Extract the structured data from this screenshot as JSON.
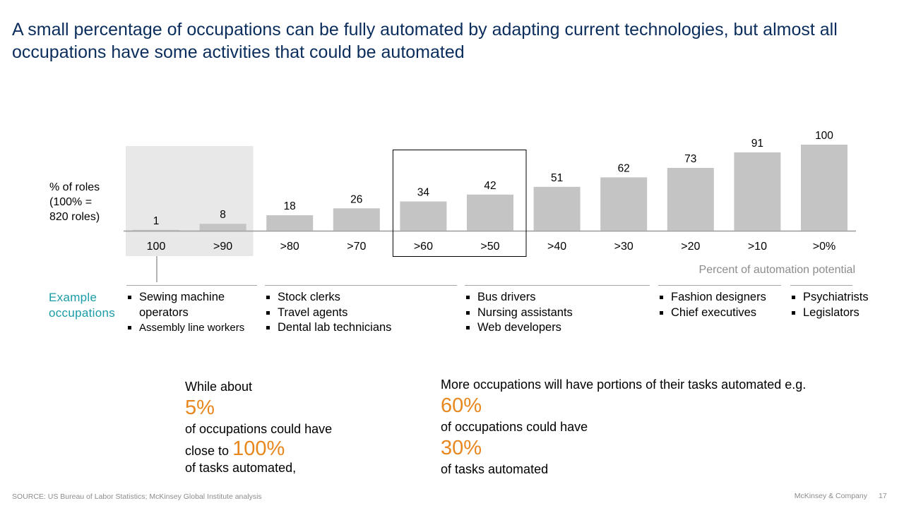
{
  "title": "A small percentage of occupations can be fully automated by adapting current technologies, but almost all occupations have some activities that could be automated",
  "roles_label": [
    "% of roles",
    "(100% =",
    "820 roles)"
  ],
  "chart_data": {
    "type": "bar",
    "categories": [
      "100",
      ">90",
      ">80",
      ">70",
      ">60",
      ">50",
      ">40",
      ">30",
      ">20",
      ">10",
      ">0%"
    ],
    "values": [
      1,
      8,
      18,
      26,
      34,
      42,
      51,
      62,
      73,
      91,
      100
    ],
    "xlabel": "Percent of automation potential",
    "ylabel": "% of roles (100% = 820 roles)",
    "ylim": [
      0,
      100
    ],
    "bar_color": "#c4c4c4",
    "highlight_shaded_categories": [
      "100",
      ">90"
    ],
    "highlight_boxed_categories": [
      ">60",
      ">50"
    ]
  },
  "examples": {
    "label": [
      "Example",
      "occupations"
    ],
    "groups": [
      {
        "items": [
          "Sewing machine",
          "operators",
          "Assembly line workers"
        ]
      },
      {
        "items": [
          "Stock clerks",
          "Travel agents",
          "Dental lab technicians"
        ]
      },
      {
        "items": [
          "Bus drivers",
          "Nursing assistants",
          "Web developers"
        ]
      },
      {
        "items": [
          "Fashion designers",
          "Chief executives"
        ]
      },
      {
        "items": [
          "Psychiatrists",
          "Legislators"
        ]
      }
    ]
  },
  "stats": {
    "left": {
      "intro": "While about",
      "pct1": "5%",
      "line2": "of occupations could have",
      "line3_prefix": "close to",
      "pct2": "100%",
      "line4": "of tasks automated,"
    },
    "right": {
      "intro": "More occupations will have portions of their tasks automated e.g.",
      "pct1": "60%",
      "line2": "of occupations could have",
      "pct2": "30%",
      "line4": "of tasks automated"
    }
  },
  "footer": {
    "source": "SOURCE: US Bureau of Labor Statistics; McKinsey Global Institute analysis",
    "company": "McKinsey & Company",
    "page": "17"
  },
  "colors": {
    "title": "#0b2d5b",
    "accent_orange": "#e8871e",
    "example_teal": "#1a9ba6",
    "bar_gray": "#c4c4c4",
    "shade_gray": "#e8e8e8"
  }
}
